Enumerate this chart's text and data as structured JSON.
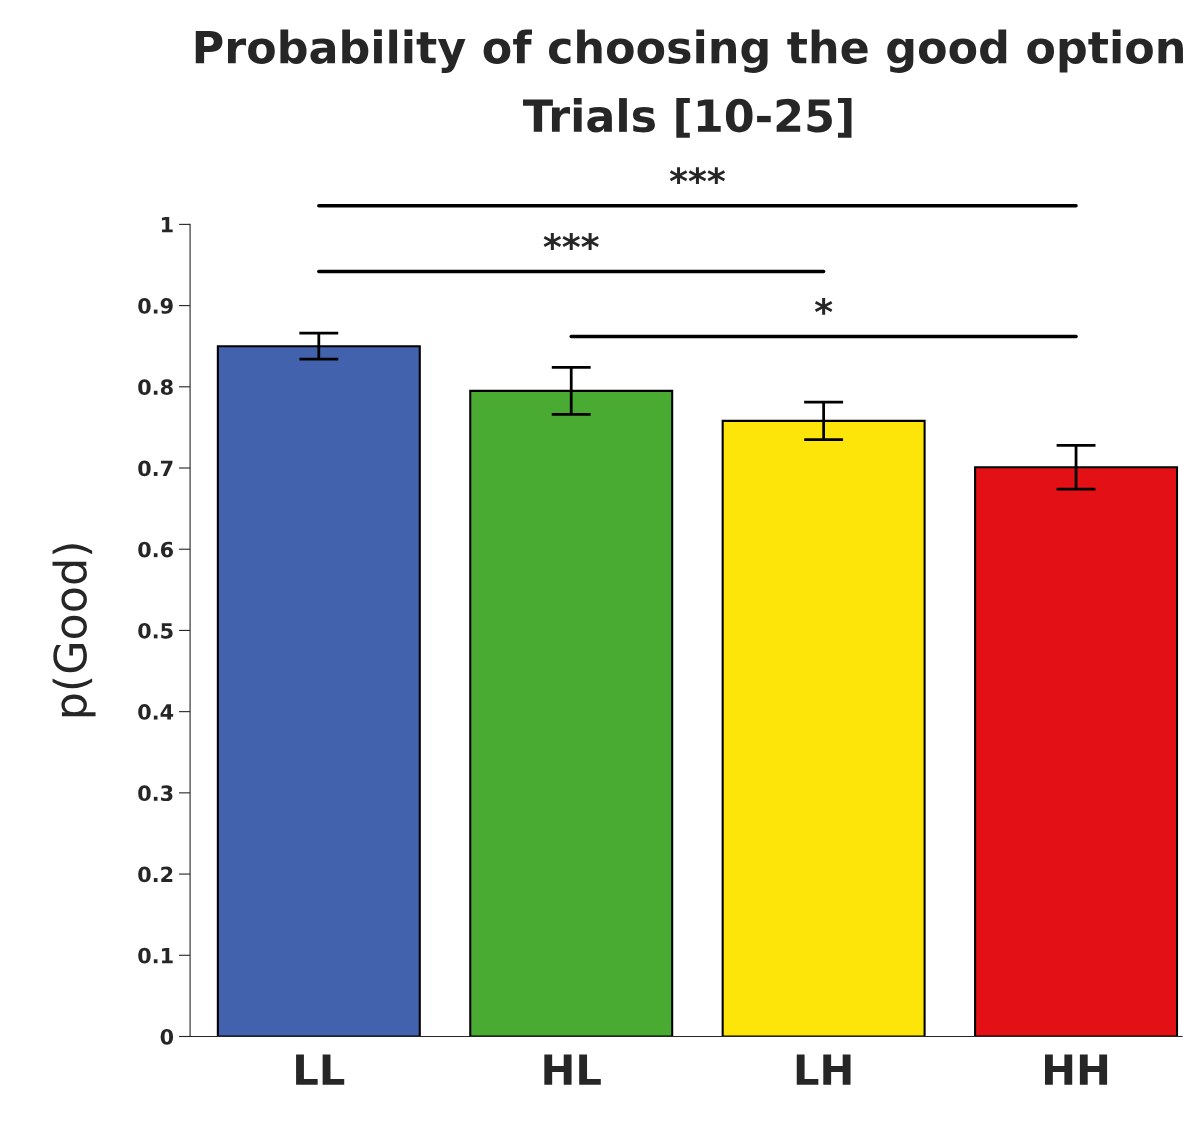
{
  "chart_data": {
    "type": "bar",
    "title": "Probability of choosing the good option",
    "subtitle": "Trials [10-25]",
    "ylabel": "p(Good)",
    "categories": [
      "LL",
      "HL",
      "LH",
      "HH"
    ],
    "values": [
      0.85,
      0.795,
      0.758,
      0.701
    ],
    "colors": [
      "#4262ad",
      "#4aab33",
      "#fde50a",
      "#e31115"
    ],
    "errors": [
      0.016,
      0.029,
      0.023,
      0.027
    ],
    "ylim": [
      0,
      1
    ],
    "yticks": [
      0,
      0.1,
      0.2,
      0.3,
      0.4,
      0.5,
      0.6,
      0.7,
      0.8,
      0.9,
      1
    ],
    "annotations": [
      "***",
      "***",
      "*"
    ],
    "grid": false,
    "legend": false
  }
}
